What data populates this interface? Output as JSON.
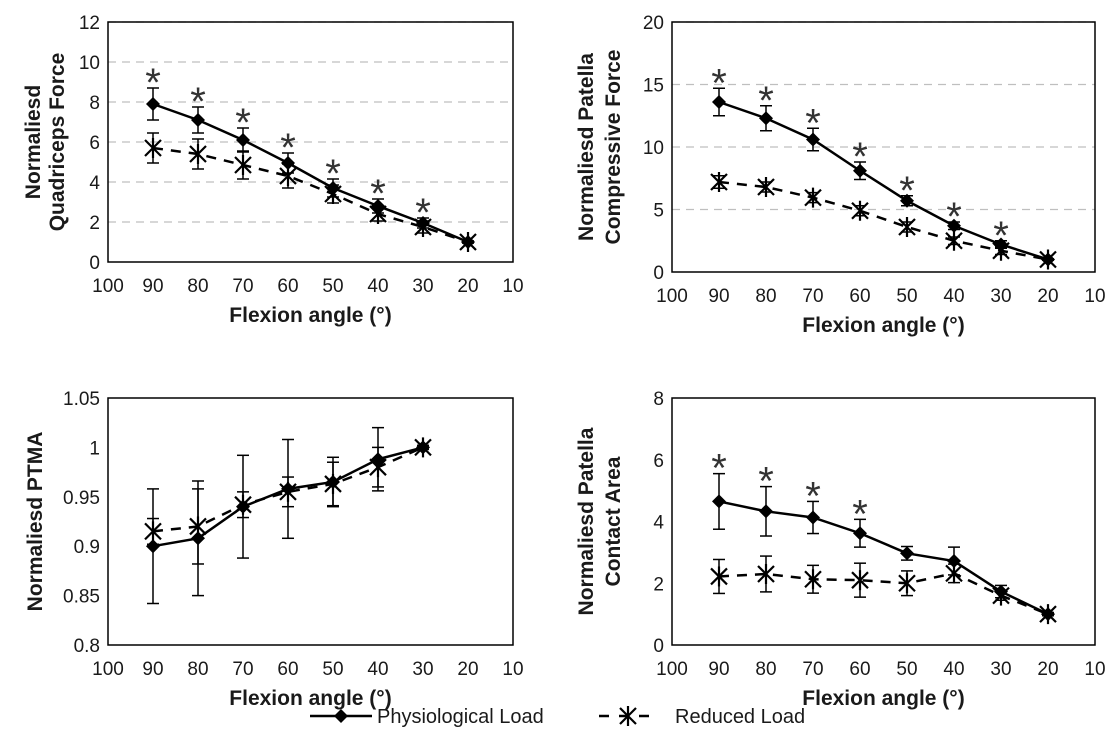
{
  "legend": {
    "physiological": "Physiological Load",
    "reduced": "Reduced Load"
  },
  "colors": {
    "line": "#000000",
    "star": "#333333",
    "frame": "#000000",
    "grid": "#bfbfbf"
  },
  "chart_data": [
    {
      "type": "line",
      "xlabel": "Flexion angle (°)",
      "ylabel_lines": [
        "Normaliesd",
        "Quadriceps Force"
      ],
      "xlim": [
        100,
        10
      ],
      "xticks": [
        100,
        90,
        80,
        70,
        60,
        50,
        40,
        30,
        20,
        10
      ],
      "ylim": [
        0,
        12
      ],
      "yticks": [
        0,
        2,
        4,
        6,
        8,
        10,
        12
      ],
      "grid": "horizontal dashed",
      "x": [
        90,
        80,
        70,
        60,
        50,
        40,
        30,
        20
      ],
      "series": [
        {
          "name": "Physiological Load",
          "style": "solid",
          "marker": "diamond",
          "values": [
            7.9,
            7.1,
            6.1,
            4.95,
            3.7,
            2.8,
            1.95,
            1.0
          ],
          "errors": [
            0.8,
            0.65,
            0.6,
            0.5,
            0.45,
            0.35,
            0.25,
            0.05
          ]
        },
        {
          "name": "Reduced Load",
          "style": "dashed",
          "marker": "asterisk",
          "values": [
            5.7,
            5.4,
            4.85,
            4.3,
            3.4,
            2.4,
            1.75,
            1.0
          ],
          "errors": [
            0.75,
            0.75,
            0.7,
            0.6,
            0.45,
            0.35,
            0.3,
            0.05
          ]
        }
      ],
      "significance": {
        "symbol": "*",
        "x": [
          90,
          80,
          70,
          60,
          50,
          40,
          30
        ]
      }
    },
    {
      "type": "line",
      "xlabel": "Flexion angle (°)",
      "ylabel_lines": [
        "Normaliesd Patella",
        "Compressive Force"
      ],
      "xlim": [
        100,
        10
      ],
      "xticks": [
        100,
        90,
        80,
        70,
        60,
        50,
        40,
        30,
        20,
        10
      ],
      "ylim": [
        0,
        20
      ],
      "yticks": [
        0,
        5,
        10,
        15,
        20
      ],
      "grid": "horizontal dashed",
      "x": [
        90,
        80,
        70,
        60,
        50,
        40,
        30,
        20
      ],
      "series": [
        {
          "name": "Physiological Load",
          "style": "solid",
          "marker": "diamond",
          "values": [
            13.6,
            12.3,
            10.6,
            8.1,
            5.7,
            3.7,
            2.2,
            1.0
          ],
          "errors": [
            1.1,
            1.0,
            0.9,
            0.7,
            0.4,
            0.3,
            0.3,
            0.05
          ]
        },
        {
          "name": "Reduced Load",
          "style": "dashed",
          "marker": "asterisk",
          "values": [
            7.2,
            6.8,
            5.95,
            4.9,
            3.6,
            2.5,
            1.7,
            1.0
          ],
          "errors": [
            0.5,
            0.4,
            0.4,
            0.4,
            0.4,
            0.3,
            0.3,
            0.05
          ]
        }
      ],
      "significance": {
        "symbol": "*",
        "x": [
          90,
          80,
          70,
          60,
          50,
          40,
          30
        ]
      }
    },
    {
      "type": "line",
      "xlabel": "Flexion angle (°)",
      "ylabel_lines": [
        "Normaliesd PTMA"
      ],
      "xlim": [
        100,
        10
      ],
      "xticks": [
        100,
        90,
        80,
        70,
        60,
        50,
        40,
        30,
        20,
        10
      ],
      "ylim": [
        0.8,
        1.05
      ],
      "yticks": [
        0.8,
        0.85,
        0.9,
        0.95,
        1,
        1.05
      ],
      "ytick_labels": [
        "0.8",
        "0.85",
        "0.9",
        "0.95",
        "1",
        "1.05"
      ],
      "grid": "none",
      "x": [
        90,
        80,
        70,
        60,
        50,
        40,
        30
      ],
      "series": [
        {
          "name": "Physiological Load",
          "style": "solid",
          "marker": "diamond",
          "values": [
            0.9,
            0.908,
            0.94,
            0.958,
            0.965,
            0.988,
            1.0
          ],
          "errors": [
            0.058,
            0.058,
            0.052,
            0.05,
            0.025,
            0.032,
            0.002
          ]
        },
        {
          "name": "Reduced Load",
          "style": "dashed",
          "marker": "asterisk",
          "values": [
            0.915,
            0.92,
            0.942,
            0.955,
            0.963,
            0.98,
            1.0
          ],
          "errors": [
            0.013,
            0.038,
            0.013,
            0.015,
            0.022,
            0.02,
            0.002
          ]
        }
      ],
      "significance": {
        "symbol": "*",
        "x": []
      }
    },
    {
      "type": "line",
      "xlabel": "Flexion angle (°)",
      "ylabel_lines": [
        "Normaliesd Patella",
        "Contact Area"
      ],
      "xlim": [
        100,
        10
      ],
      "xticks": [
        100,
        90,
        80,
        70,
        60,
        50,
        40,
        30,
        20,
        10
      ],
      "ylim": [
        0,
        8
      ],
      "yticks": [
        0,
        2,
        4,
        6,
        8
      ],
      "grid": "none",
      "x": [
        90,
        80,
        70,
        60,
        50,
        40,
        30,
        20
      ],
      "series": [
        {
          "name": "Physiological Load",
          "style": "solid",
          "marker": "diamond",
          "values": [
            4.65,
            4.33,
            4.13,
            3.62,
            2.97,
            2.72,
            1.73,
            1.0
          ],
          "errors": [
            0.9,
            0.8,
            0.52,
            0.45,
            0.22,
            0.45,
            0.2,
            0.05
          ]
        },
        {
          "name": "Reduced Load",
          "style": "dashed",
          "marker": "asterisk",
          "values": [
            2.22,
            2.3,
            2.13,
            2.1,
            2.0,
            2.32,
            1.6,
            1.0
          ],
          "errors": [
            0.55,
            0.58,
            0.45,
            0.55,
            0.4,
            0.3,
            0.15,
            0.05
          ]
        }
      ],
      "significance": {
        "symbol": "*",
        "x": [
          90,
          80,
          70,
          60
        ]
      }
    }
  ]
}
